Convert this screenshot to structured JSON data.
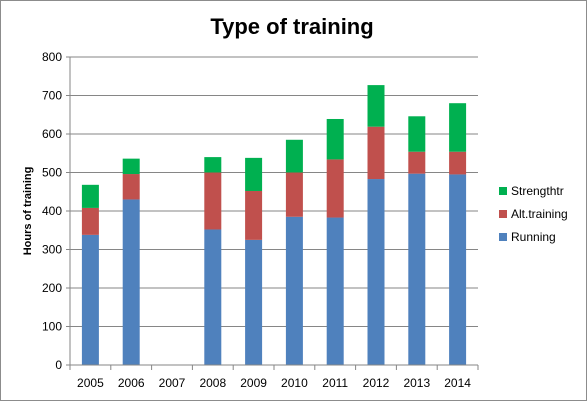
{
  "chart_data": {
    "type": "bar",
    "stacked": true,
    "title": "Type of training",
    "xlabel": "",
    "ylabel": "Hours of training",
    "ylim": [
      0,
      800
    ],
    "yticks": [
      "0",
      "100",
      "200",
      "300",
      "400",
      "500",
      "600",
      "700",
      "800"
    ],
    "grid": true,
    "legend_position": "right",
    "categories": [
      "2005",
      "2006",
      "2007",
      "2008",
      "2009",
      "2010",
      "2011",
      "2012",
      "2013",
      "2014"
    ],
    "series": [
      {
        "name": "Running",
        "color": "#4f81bd",
        "values": [
          338,
          430,
          0,
          352,
          325,
          385,
          383,
          483,
          497,
          495
        ]
      },
      {
        "name": "Alt.training",
        "color": "#c0504d",
        "values": [
          70,
          66,
          0,
          148,
          127,
          115,
          151,
          136,
          57,
          59
        ]
      },
      {
        "name": "Strengthtr",
        "color": "#00b050",
        "values": [
          60,
          40,
          0,
          40,
          86,
          85,
          105,
          108,
          92,
          126
        ]
      }
    ],
    "legend_order": [
      "Strengthtr",
      "Alt.training",
      "Running"
    ]
  }
}
